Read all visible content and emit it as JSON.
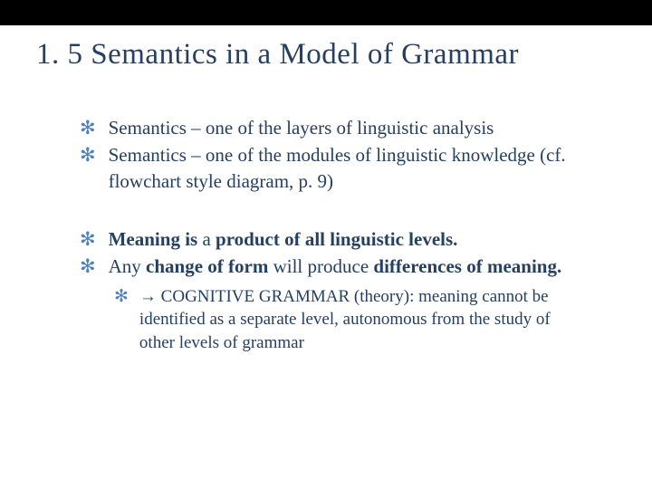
{
  "slide": {
    "title": "1. 5 Semantics in a Model of Grammar",
    "title_color": "#254061",
    "title_fontsize": 33,
    "bullet_color": "#4f81bd",
    "text_color": "#254061",
    "body_fontsize": 21,
    "sub_fontsize": 19,
    "topbar_color": "#000000",
    "background_color": "#ffffff",
    "group1": {
      "item1": "Semantics – one of the layers of linguistic analysis",
      "item2": "Semantics – one of the modules of linguistic knowledge (cf. flowchart style diagram, p. 9)"
    },
    "group2": {
      "item1_html": "<b>Meaning is</b> a <b>product of all linguistic levels.</b>",
      "item2_html": "Any <b>change of form</b> will produce <b>differences of meaning.</b>",
      "sub1": "→ COGNITIVE GRAMMAR (theory): meaning cannot be identified as a separate level, autonomous from the study of other levels of grammar"
    }
  }
}
